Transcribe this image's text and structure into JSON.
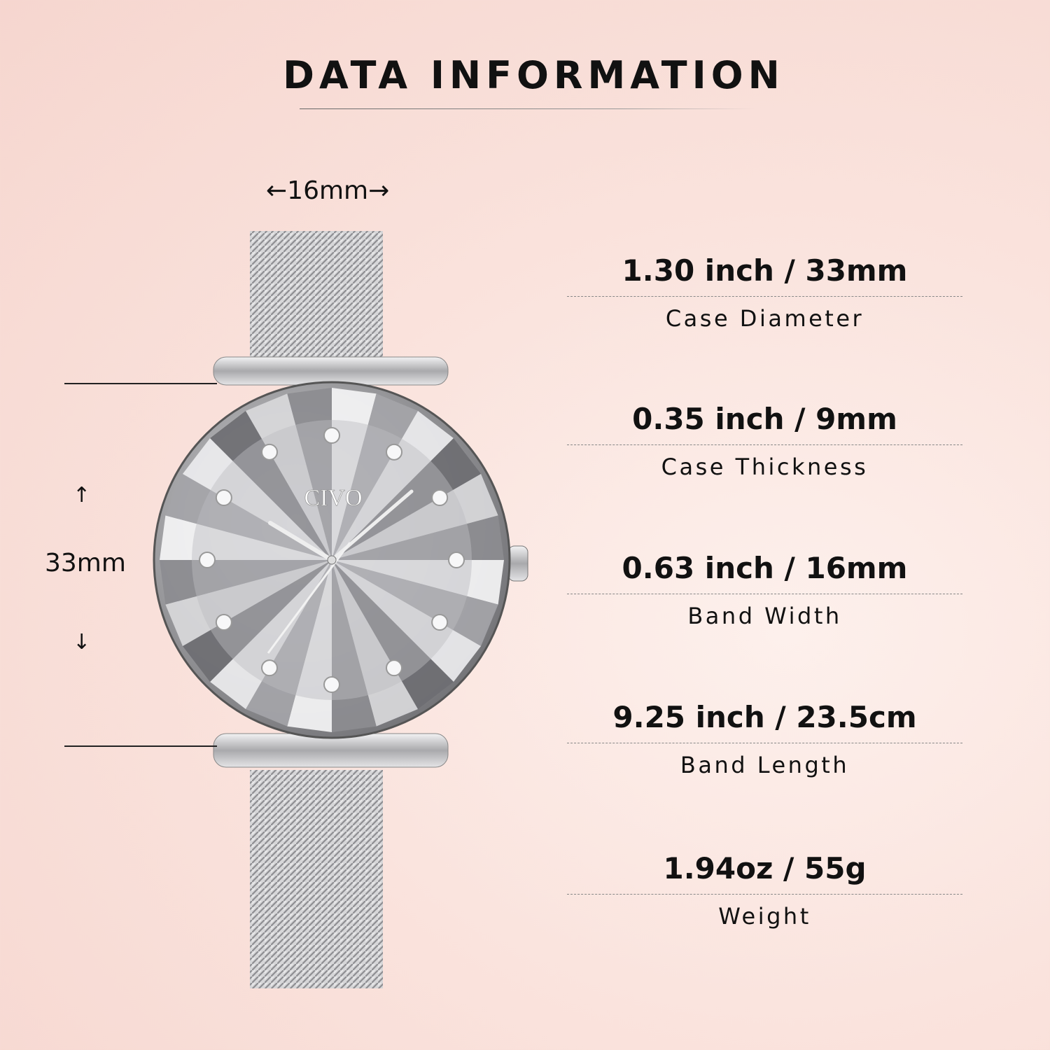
{
  "header": {
    "title": "DATA INFORMATION"
  },
  "dimensions": {
    "band_width_label": "←16mm→",
    "case_height_label": "33mm",
    "arrow_up": "↑",
    "arrow_down": "↓"
  },
  "watch": {
    "brand": "CIVO",
    "colors": {
      "metal": "#c8c8ca",
      "dial": "#9a9a9c"
    }
  },
  "specs": [
    {
      "value": "1.30 inch / 33mm",
      "label": "Case Diameter"
    },
    {
      "value": "0.35 inch / 9mm",
      "label": "Case Thickness"
    },
    {
      "value": "0.63 inch / 16mm",
      "label": "Band Width"
    },
    {
      "value": "9.25 inch / 23.5cm",
      "label": "Band Length"
    },
    {
      "value": "1.94oz / 55g",
      "label": "Weight"
    }
  ]
}
